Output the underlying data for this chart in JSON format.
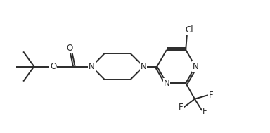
{
  "bg_color": "#ffffff",
  "line_color": "#2a2a2a",
  "figsize": [
    3.84,
    1.89
  ],
  "dpi": 100,
  "bond_width": 1.4,
  "font_size": 8.5,
  "xlim": [
    0,
    10
  ],
  "ylim": [
    0,
    5.2
  ]
}
